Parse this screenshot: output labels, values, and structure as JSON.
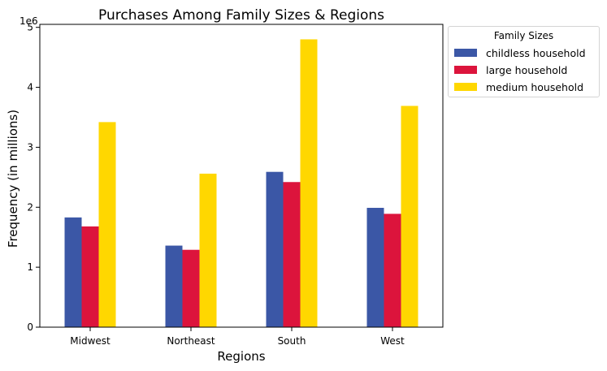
{
  "chart_data": {
    "type": "bar",
    "title": "Purchases Among Family Sizes & Regions",
    "xlabel": "Regions",
    "ylabel": "Frequency (in millions)",
    "y_offset_label": "1e6",
    "categories": [
      "Midwest",
      "Northeast",
      "South",
      "West"
    ],
    "ylim": [
      0,
      5.05
    ],
    "yticks": [
      0,
      1,
      2,
      3,
      4,
      5
    ],
    "legend_title": "Family Sizes",
    "legend_position": "outside-top-right",
    "series": [
      {
        "name": "childless household",
        "color": "#3b57a6",
        "values": [
          1.83,
          1.36,
          2.59,
          1.99
        ]
      },
      {
        "name": "large household",
        "color": "#dc143c",
        "values": [
          1.68,
          1.29,
          2.42,
          1.89
        ]
      },
      {
        "name": "medium household",
        "color": "#ffd700",
        "values": [
          3.42,
          2.56,
          4.8,
          3.69
        ]
      }
    ]
  }
}
